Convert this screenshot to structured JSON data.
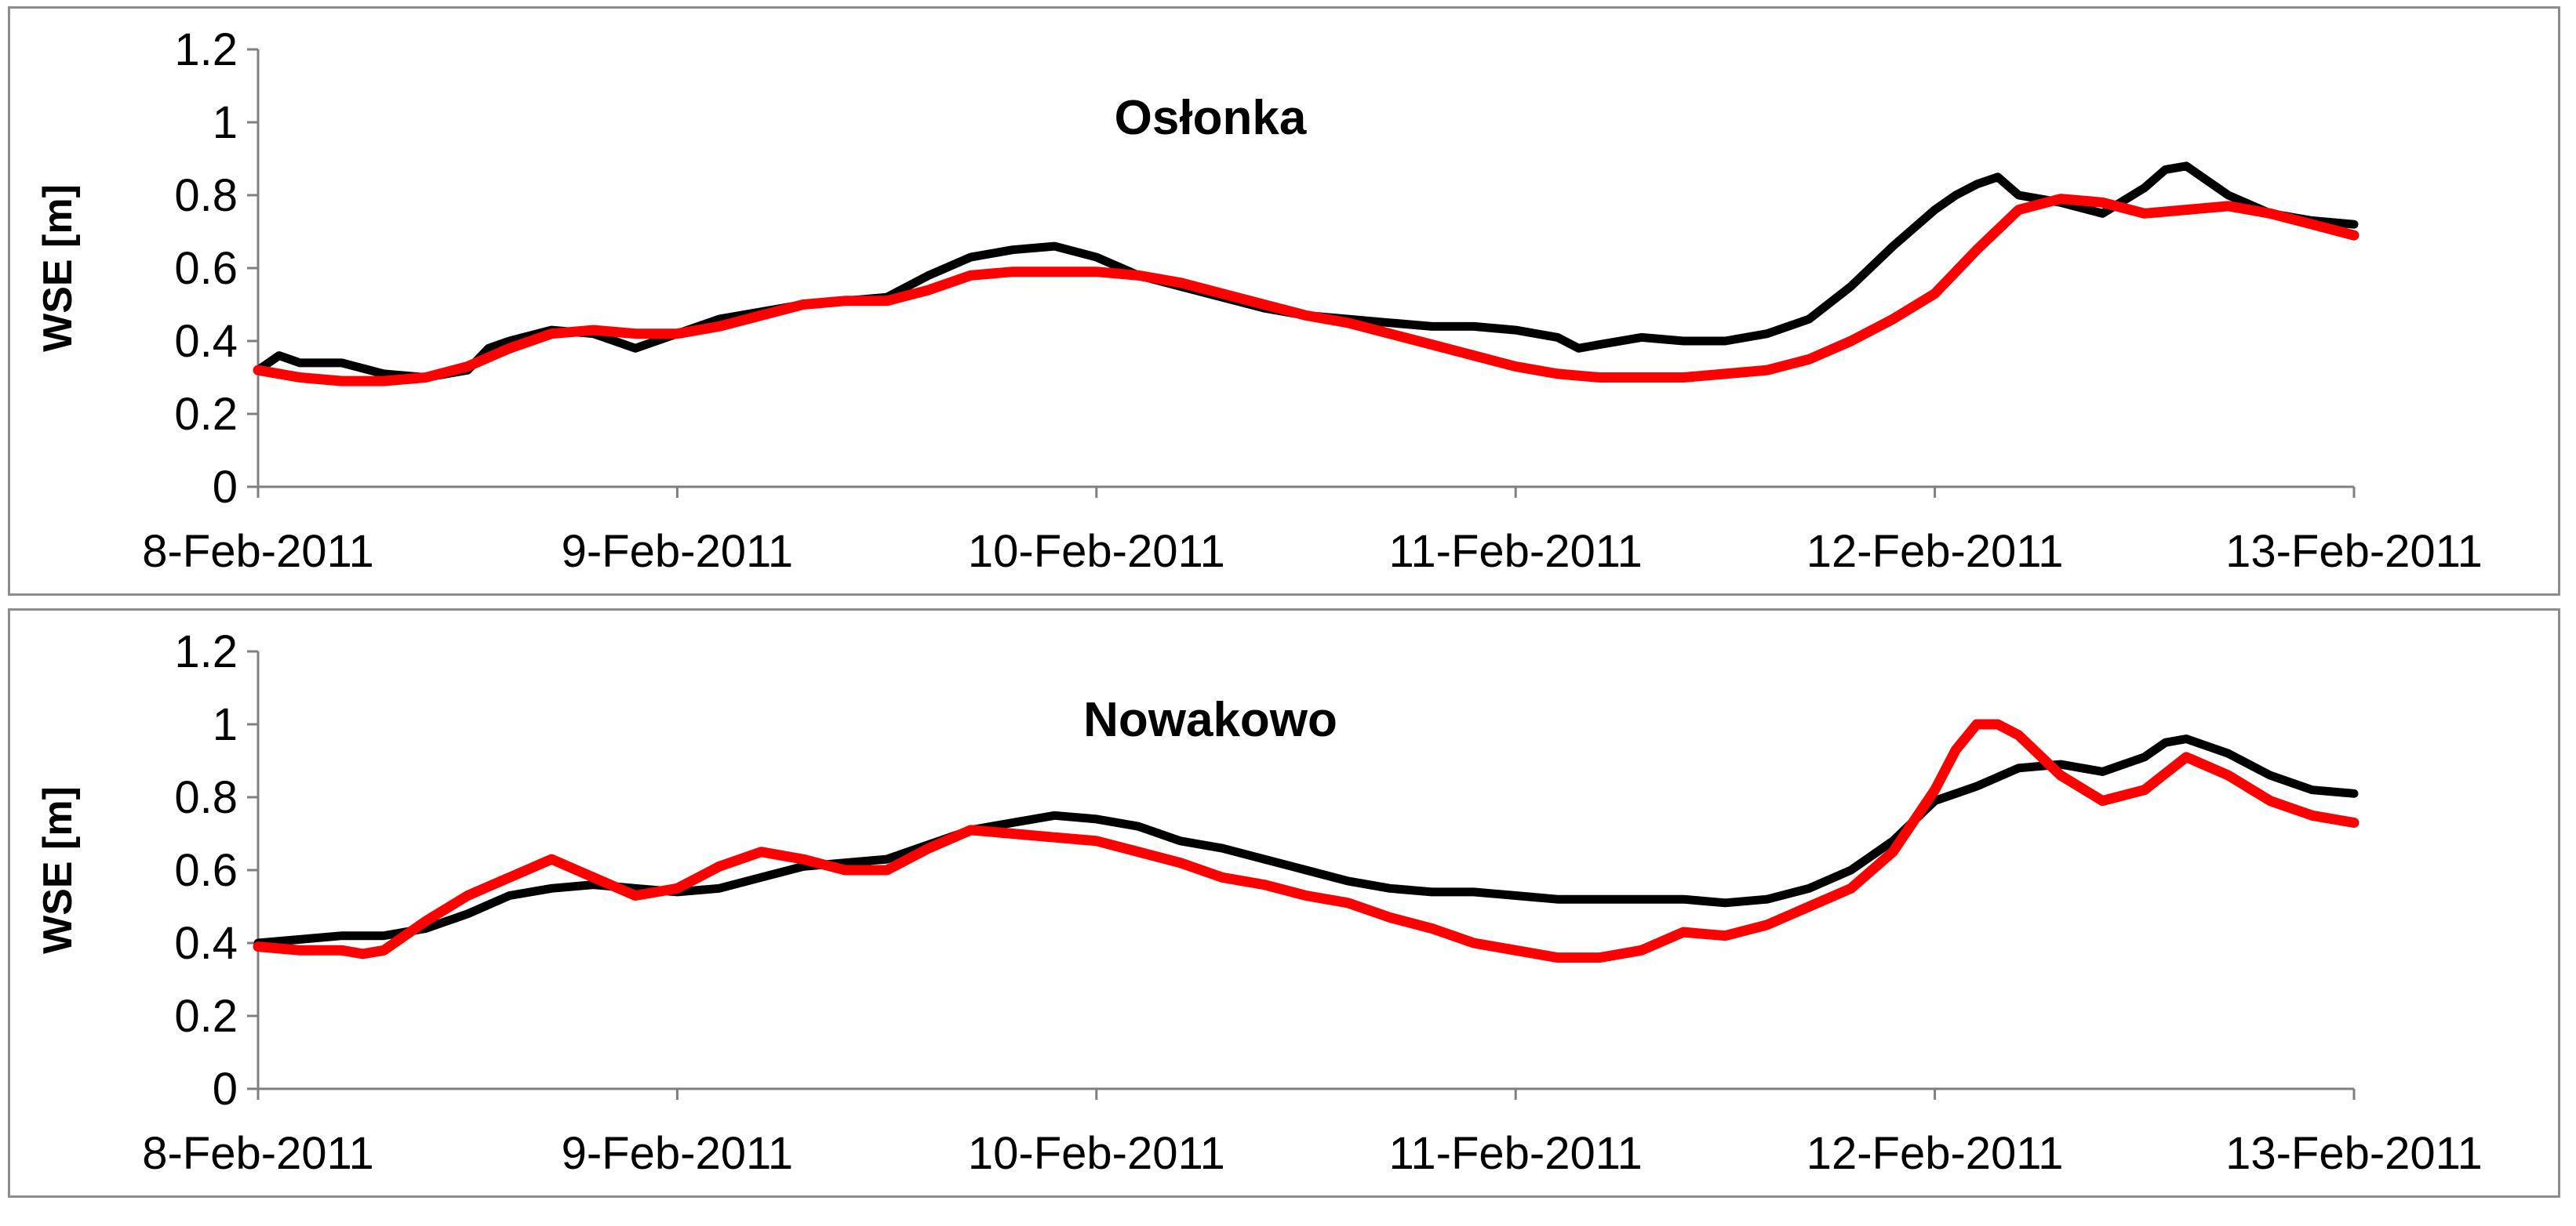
{
  "chart_data": [
    {
      "type": "line",
      "title": "Osłonka",
      "ylabel": "WSE [m]",
      "xlabel": "",
      "ylim": [
        0,
        1.2
      ],
      "yticks": [
        0,
        0.2,
        0.4,
        0.6,
        0.8,
        1,
        1.2
      ],
      "ytick_labels": [
        "0",
        "0.2",
        "0.4",
        "0.6",
        "0.8",
        "1",
        "1.2"
      ],
      "xlim": [
        0,
        5
      ],
      "xticks": [
        0,
        1,
        2,
        3,
        4,
        5
      ],
      "xtick_labels": [
        "8-Feb-2011",
        "9-Feb-2011",
        "10-Feb-2011",
        "11-Feb-2011",
        "12-Feb-2011",
        "13-Feb-2011"
      ],
      "grid": false,
      "legend": "none",
      "series": [
        {
          "color": "#000000",
          "x": [
            0,
            0.05,
            0.1,
            0.2,
            0.3,
            0.4,
            0.5,
            0.55,
            0.6,
            0.7,
            0.8,
            0.9,
            1.0,
            1.1,
            1.2,
            1.3,
            1.4,
            1.5,
            1.6,
            1.7,
            1.8,
            1.9,
            2.0,
            2.1,
            2.2,
            2.3,
            2.4,
            2.5,
            2.6,
            2.7,
            2.8,
            2.9,
            3.0,
            3.1,
            3.15,
            3.2,
            3.3,
            3.4,
            3.5,
            3.6,
            3.7,
            3.8,
            3.9,
            4.0,
            4.05,
            4.1,
            4.15,
            4.2,
            4.3,
            4.4,
            4.5,
            4.55,
            4.6,
            4.7,
            4.8,
            4.9,
            5.0
          ],
          "y": [
            0.32,
            0.36,
            0.34,
            0.34,
            0.31,
            0.3,
            0.32,
            0.38,
            0.4,
            0.43,
            0.42,
            0.38,
            0.42,
            0.46,
            0.48,
            0.5,
            0.51,
            0.52,
            0.58,
            0.63,
            0.65,
            0.66,
            0.63,
            0.58,
            0.55,
            0.52,
            0.49,
            0.47,
            0.46,
            0.45,
            0.44,
            0.44,
            0.43,
            0.41,
            0.38,
            0.39,
            0.41,
            0.4,
            0.4,
            0.42,
            0.46,
            0.55,
            0.66,
            0.76,
            0.8,
            0.83,
            0.85,
            0.8,
            0.78,
            0.75,
            0.82,
            0.87,
            0.88,
            0.8,
            0.75,
            0.73,
            0.72
          ]
        },
        {
          "color": "#ff0000",
          "x": [
            0,
            0.1,
            0.2,
            0.3,
            0.4,
            0.5,
            0.6,
            0.7,
            0.8,
            0.9,
            1.0,
            1.1,
            1.2,
            1.3,
            1.4,
            1.5,
            1.6,
            1.7,
            1.8,
            1.9,
            2.0,
            2.1,
            2.2,
            2.3,
            2.4,
            2.5,
            2.6,
            2.7,
            2.8,
            2.9,
            3.0,
            3.1,
            3.2,
            3.3,
            3.4,
            3.5,
            3.6,
            3.7,
            3.8,
            3.9,
            4.0,
            4.1,
            4.2,
            4.3,
            4.4,
            4.5,
            4.6,
            4.7,
            4.8,
            4.9,
            5.0
          ],
          "y": [
            0.32,
            0.3,
            0.29,
            0.29,
            0.3,
            0.33,
            0.38,
            0.42,
            0.43,
            0.42,
            0.42,
            0.44,
            0.47,
            0.5,
            0.51,
            0.51,
            0.54,
            0.58,
            0.59,
            0.59,
            0.59,
            0.58,
            0.56,
            0.53,
            0.5,
            0.47,
            0.45,
            0.42,
            0.39,
            0.36,
            0.33,
            0.31,
            0.3,
            0.3,
            0.3,
            0.31,
            0.32,
            0.35,
            0.4,
            0.46,
            0.53,
            0.65,
            0.76,
            0.79,
            0.78,
            0.75,
            0.76,
            0.77,
            0.75,
            0.72,
            0.69
          ]
        }
      ]
    },
    {
      "type": "line",
      "title": "Nowakowo",
      "ylabel": "WSE [m]",
      "xlabel": "",
      "ylim": [
        0,
        1.2
      ],
      "yticks": [
        0,
        0.2,
        0.4,
        0.6,
        0.8,
        1,
        1.2
      ],
      "ytick_labels": [
        "0",
        "0.2",
        "0.4",
        "0.6",
        "0.8",
        "1",
        "1.2"
      ],
      "xlim": [
        0,
        5
      ],
      "xticks": [
        0,
        1,
        2,
        3,
        4,
        5
      ],
      "xtick_labels": [
        "8-Feb-2011",
        "9-Feb-2011",
        "10-Feb-2011",
        "11-Feb-2011",
        "12-Feb-2011",
        "13-Feb-2011"
      ],
      "grid": false,
      "legend": "none",
      "series": [
        {
          "color": "#000000",
          "x": [
            0,
            0.1,
            0.2,
            0.3,
            0.4,
            0.5,
            0.6,
            0.7,
            0.8,
            0.9,
            1.0,
            1.1,
            1.2,
            1.3,
            1.4,
            1.5,
            1.6,
            1.7,
            1.8,
            1.9,
            2.0,
            2.1,
            2.2,
            2.3,
            2.4,
            2.5,
            2.6,
            2.7,
            2.8,
            2.9,
            3.0,
            3.1,
            3.2,
            3.3,
            3.4,
            3.5,
            3.6,
            3.7,
            3.8,
            3.9,
            4.0,
            4.1,
            4.2,
            4.3,
            4.4,
            4.5,
            4.55,
            4.6,
            4.7,
            4.8,
            4.9,
            5.0
          ],
          "y": [
            0.4,
            0.41,
            0.42,
            0.42,
            0.44,
            0.48,
            0.53,
            0.55,
            0.56,
            0.55,
            0.54,
            0.55,
            0.58,
            0.61,
            0.62,
            0.63,
            0.67,
            0.71,
            0.73,
            0.75,
            0.74,
            0.72,
            0.68,
            0.66,
            0.63,
            0.6,
            0.57,
            0.55,
            0.54,
            0.54,
            0.53,
            0.52,
            0.52,
            0.52,
            0.52,
            0.51,
            0.52,
            0.55,
            0.6,
            0.68,
            0.79,
            0.83,
            0.88,
            0.89,
            0.87,
            0.91,
            0.95,
            0.96,
            0.92,
            0.86,
            0.82,
            0.81
          ]
        },
        {
          "color": "#ff0000",
          "x": [
            0,
            0.1,
            0.2,
            0.25,
            0.3,
            0.4,
            0.5,
            0.6,
            0.7,
            0.8,
            0.9,
            1.0,
            1.1,
            1.2,
            1.3,
            1.4,
            1.5,
            1.6,
            1.7,
            1.8,
            1.9,
            2.0,
            2.1,
            2.2,
            2.3,
            2.4,
            2.5,
            2.6,
            2.7,
            2.8,
            2.9,
            3.0,
            3.1,
            3.2,
            3.3,
            3.4,
            3.5,
            3.6,
            3.7,
            3.8,
            3.9,
            4.0,
            4.05,
            4.1,
            4.15,
            4.2,
            4.3,
            4.4,
            4.5,
            4.6,
            4.7,
            4.8,
            4.9,
            5.0
          ],
          "y": [
            0.39,
            0.38,
            0.38,
            0.37,
            0.38,
            0.46,
            0.53,
            0.58,
            0.63,
            0.58,
            0.53,
            0.55,
            0.61,
            0.65,
            0.63,
            0.6,
            0.6,
            0.66,
            0.71,
            0.7,
            0.69,
            0.68,
            0.65,
            0.62,
            0.58,
            0.56,
            0.53,
            0.51,
            0.47,
            0.44,
            0.4,
            0.38,
            0.36,
            0.36,
            0.38,
            0.43,
            0.42,
            0.45,
            0.5,
            0.55,
            0.65,
            0.82,
            0.93,
            1.0,
            1.0,
            0.97,
            0.86,
            0.79,
            0.82,
            0.91,
            0.86,
            0.79,
            0.75,
            0.73
          ]
        }
      ]
    }
  ]
}
